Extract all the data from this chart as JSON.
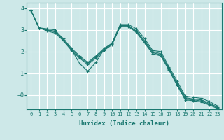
{
  "xlabel": "Humidex (Indice chaleur)",
  "bg_color": "#cde8e8",
  "grid_color": "#ffffff",
  "line_color": "#1a7870",
  "xlim": [
    -0.5,
    23.5
  ],
  "ylim": [
    -0.65,
    4.25
  ],
  "ytick_vals": [
    4,
    3,
    2,
    1,
    0
  ],
  "ytick_labels": [
    "4",
    "3",
    "2",
    "1",
    "−0"
  ],
  "xticks": [
    0,
    1,
    2,
    3,
    4,
    5,
    6,
    7,
    8,
    9,
    10,
    11,
    12,
    13,
    14,
    15,
    16,
    17,
    18,
    19,
    20,
    21,
    22,
    23
  ],
  "series": [
    [
      3.9,
      3.1,
      3.05,
      3.0,
      2.5,
      2.1,
      1.45,
      1.1,
      1.5,
      2.1,
      2.4,
      3.25,
      3.25,
      3.05,
      2.6,
      2.05,
      2.0,
      1.3,
      0.65,
      -0.05,
      -0.1,
      -0.15,
      -0.3,
      -0.5
    ],
    [
      3.9,
      3.1,
      3.0,
      2.95,
      2.6,
      2.15,
      1.8,
      1.5,
      1.8,
      2.15,
      2.38,
      3.2,
      3.2,
      2.95,
      2.5,
      2.0,
      1.9,
      1.25,
      0.55,
      -0.12,
      -0.18,
      -0.22,
      -0.38,
      -0.55
    ],
    [
      3.9,
      3.1,
      3.0,
      2.9,
      2.55,
      2.1,
      1.75,
      1.45,
      1.75,
      2.1,
      2.35,
      3.18,
      3.18,
      2.92,
      2.45,
      1.95,
      1.85,
      1.2,
      0.5,
      -0.18,
      -0.22,
      -0.27,
      -0.42,
      -0.58
    ],
    [
      3.9,
      3.1,
      2.95,
      2.85,
      2.5,
      2.05,
      1.7,
      1.4,
      1.7,
      2.05,
      2.32,
      3.15,
      3.15,
      2.88,
      2.4,
      1.9,
      1.8,
      1.15,
      0.45,
      -0.22,
      -0.26,
      -0.32,
      -0.46,
      -0.62
    ]
  ]
}
